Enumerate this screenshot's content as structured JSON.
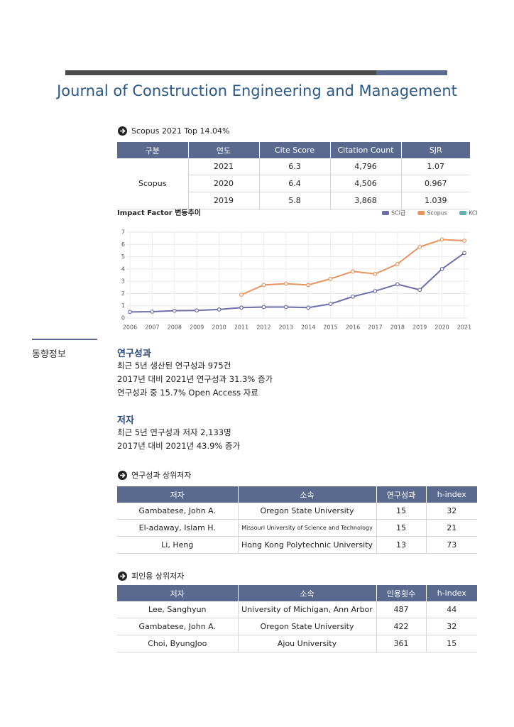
{
  "header": {
    "title": "Journal of Construction Engineering and Management"
  },
  "scopus": {
    "heading": "Scopus 2021 Top 14.04%",
    "columns": [
      "구분",
      "연도",
      "Cite Score",
      "Citation Count",
      "SJR"
    ],
    "group": "Scopus",
    "rows": [
      [
        "2021",
        "6.3",
        "4,796",
        "1.07"
      ],
      [
        "2020",
        "6.4",
        "4,506",
        "0.967"
      ],
      [
        "2019",
        "5.8",
        "3,868",
        "1.039"
      ]
    ]
  },
  "chart_data": {
    "type": "line",
    "title": "Impact Factor 변동추이",
    "categories": [
      "2006",
      "2007",
      "2008",
      "2009",
      "2010",
      "2011",
      "2012",
      "2013",
      "2014",
      "2015",
      "2016",
      "2017",
      "2018",
      "2019",
      "2020",
      "2021"
    ],
    "series": [
      {
        "name": "SCI급",
        "color": "#6b6ea8",
        "values": [
          0.5,
          0.52,
          0.6,
          0.62,
          0.7,
          0.85,
          0.9,
          0.9,
          0.85,
          1.15,
          1.75,
          2.2,
          2.75,
          2.3,
          4.0,
          5.3
        ]
      },
      {
        "name": "Scopus",
        "color": "#e8945e",
        "values": [
          null,
          null,
          null,
          null,
          null,
          1.9,
          2.7,
          2.8,
          2.7,
          3.2,
          3.8,
          3.6,
          4.4,
          5.8,
          6.4,
          6.3
        ]
      },
      {
        "name": "KCI",
        "color": "#5fb3b3",
        "values": [
          null,
          null,
          null,
          null,
          null,
          null,
          null,
          null,
          null,
          null,
          null,
          null,
          null,
          null,
          null,
          null
        ]
      }
    ],
    "ylim": [
      0,
      7
    ],
    "yticks": [
      0,
      1,
      2,
      3,
      4,
      5,
      6,
      7
    ],
    "grid": true,
    "legend": "top-right"
  },
  "sidebar": {
    "label": "동향정보"
  },
  "research": {
    "heading": "연구성과",
    "lines": [
      "최근 5년 생산된 연구성과 975건",
      "2017년 대비 2021년 연구성과 31.3% 증가",
      "연구성과 중 15.7% Open Access 자료"
    ]
  },
  "authors": {
    "heading": "저자",
    "lines": [
      "최근 5년 연구성과 저자 2,133명",
      "2017년 대비 2021년 43.9% 증가"
    ]
  },
  "top_authors": {
    "heading": "연구성과 상위저자",
    "columns": [
      "저자",
      "소속",
      "연구성과",
      "h-index"
    ],
    "rows": [
      [
        "Gambatese, John A.",
        "Oregon State University",
        "15",
        "32"
      ],
      [
        "El-adaway, Islam H.",
        "Missouri University of Science and Technology",
        "15",
        "21"
      ],
      [
        "Li, Heng",
        "Hong Kong Polytechnic University",
        "13",
        "73"
      ]
    ]
  },
  "cited_authors": {
    "heading": "피인용 상위저자",
    "columns": [
      "저자",
      "소속",
      "인용횟수",
      "h-index"
    ],
    "rows": [
      [
        "Lee, Sanghyun",
        "University of Michigan, Ann Arbor",
        "487",
        "44"
      ],
      [
        "Gambatese, John A.",
        "Oregon State University",
        "422",
        "32"
      ],
      [
        "Choi, ByungJoo",
        "Ajou University",
        "361",
        "15"
      ]
    ]
  }
}
